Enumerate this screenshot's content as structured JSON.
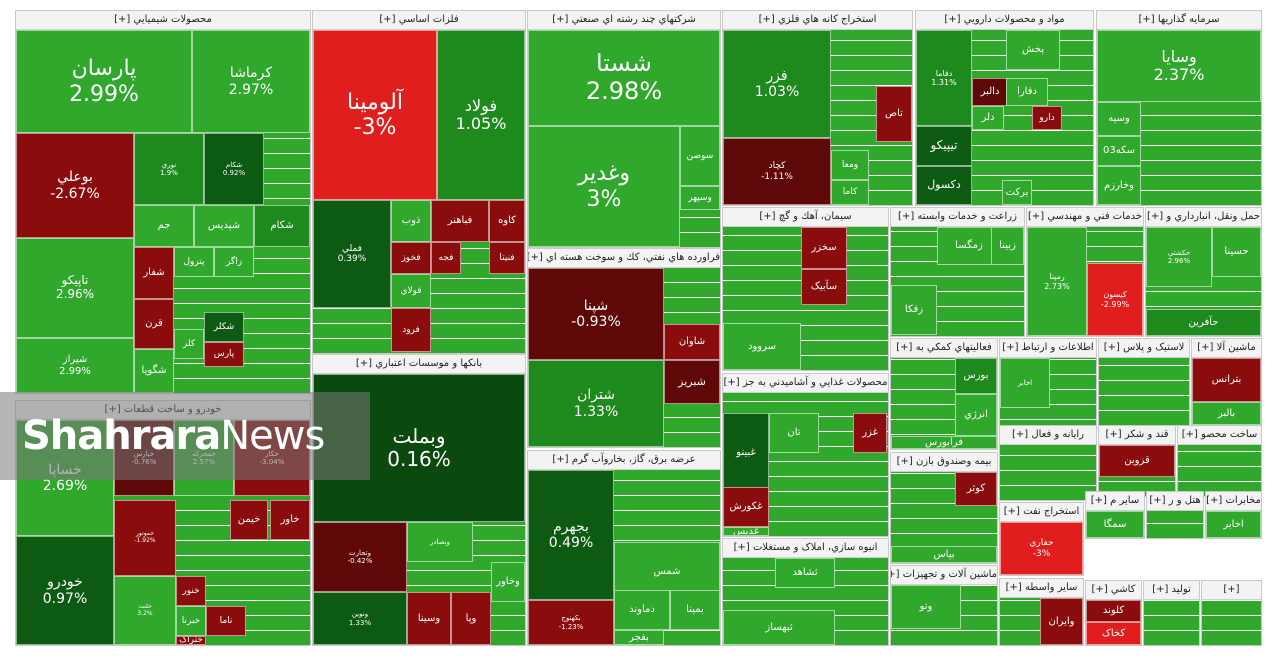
{
  "colors": {
    "bright_green": "#2fa82c",
    "green": "#1e8a1e",
    "dark_green": "#0d5a12",
    "darker_green": "#0a4a0e",
    "light_green": "#4dbd3a",
    "red": "#e01e1e",
    "dark_red": "#8a0c0c",
    "maroon": "#5e0808"
  },
  "watermark": {
    "part1": "Shahrara",
    "part2": "News"
  },
  "sectors": [
    {
      "label": "محصولات شيميايي [+]",
      "tiles": [
        {
          "name": "پارسان",
          "change": "2.99%",
          "color": "bright_green"
        },
        {
          "name": "کرماشا",
          "change": "2.97%",
          "color": "bright_green"
        },
        {
          "name": "بوعلي",
          "change": "-2.67%",
          "color": "dark_red"
        },
        {
          "name": "نوري",
          "change": "1.9%",
          "color": "green"
        },
        {
          "name": "شکام",
          "change": "0.92%",
          "color": "dark_green"
        },
        {
          "name": "تاپيکو",
          "change": "2.96%",
          "color": "bright_green"
        },
        {
          "name": "جم",
          "change": "",
          "color": "bright_green"
        },
        {
          "name": "شپديس",
          "change": "",
          "color": "bright_green"
        },
        {
          "name": "شكام",
          "change": "",
          "color": "green"
        },
        {
          "name": "شفار",
          "change": "",
          "color": "dark_red"
        },
        {
          "name": "پترول",
          "change": "",
          "color": "bright_green"
        },
        {
          "name": "زاگر",
          "change": "",
          "color": "bright_green"
        },
        {
          "name": "شيراز",
          "change": "2.99%",
          "color": "bright_green"
        },
        {
          "name": "قرن",
          "change": "",
          "color": "dark_red"
        },
        {
          "name": "شکلر",
          "change": "",
          "color": "dark_green"
        },
        {
          "name": "کلر",
          "change": "",
          "color": "bright_green"
        },
        {
          "name": "پارس",
          "change": "",
          "color": "dark_red"
        },
        {
          "name": "شگويا",
          "change": "",
          "color": "bright_green"
        }
      ]
    },
    {
      "label": "فلزات اساسي [+]",
      "tiles": [
        {
          "name": "آلومينا",
          "change": "-3%",
          "color": "red"
        },
        {
          "name": "فولاد",
          "change": "1.05%",
          "color": "green"
        },
        {
          "name": "فملي",
          "change": "0.39%",
          "color": "dark_green"
        },
        {
          "name": "ذوب",
          "change": "",
          "color": "bright_green"
        },
        {
          "name": "کاوه",
          "change": "",
          "color": "dark_red"
        },
        {
          "name": "فباهنر",
          "change": "",
          "color": "dark_red"
        },
        {
          "name": "فخوز",
          "change": "",
          "color": "dark_red"
        },
        {
          "name": "فجه",
          "change": "",
          "color": "dark_red"
        },
        {
          "name": "فنيتا",
          "change": "",
          "color": "dark_red"
        },
        {
          "name": "فولاي",
          "change": "",
          "color": "bright_green"
        },
        {
          "name": "فرود",
          "change": "",
          "color": "dark_red"
        }
      ]
    },
    {
      "label": "شرکتهاي چند رشته اي صنعتي [+]",
      "tiles": [
        {
          "name": "شستا",
          "change": "2.98%",
          "color": "bright_green"
        },
        {
          "name": "وغدير",
          "change": "3%",
          "color": "bright_green"
        },
        {
          "name": "سوصن",
          "change": "",
          "color": "bright_green"
        },
        {
          "name": "وسپهر",
          "change": "",
          "color": "bright_green"
        }
      ]
    },
    {
      "label": "استخراج کانه هاي فلزي [+]",
      "tiles": [
        {
          "name": "فزر",
          "change": "1.03%",
          "color": "green"
        },
        {
          "name": "کچاد",
          "change": "-1.11%",
          "color": "maroon"
        },
        {
          "name": "تاص",
          "change": "",
          "color": "dark_red"
        },
        {
          "name": "ومعا",
          "change": "",
          "color": "bright_green"
        },
        {
          "name": "کاما",
          "change": "",
          "color": "bright_green"
        }
      ]
    },
    {
      "label": "مواد و محصولات دارويي [+]",
      "tiles": [
        {
          "name": "دفاما",
          "change": "1.31%",
          "color": "green"
        },
        {
          "name": "پخش",
          "change": "",
          "color": "bright_green"
        },
        {
          "name": "دالبر",
          "change": "",
          "color": "maroon"
        },
        {
          "name": "دفارا",
          "change": "",
          "color": "bright_green"
        },
        {
          "name": "دلر",
          "change": "",
          "color": "bright_green"
        },
        {
          "name": "تيپيکو",
          "change": "",
          "color": "dark_green"
        },
        {
          "name": "دکسول",
          "change": "",
          "color": "dark_green"
        },
        {
          "name": "برکت",
          "change": "",
          "color": "bright_green"
        },
        {
          "name": "دارو",
          "change": "",
          "color": "dark_red"
        }
      ]
    },
    {
      "label": "سرمايه گذاريها [+]",
      "tiles": [
        {
          "name": "وسايا",
          "change": "2.37%",
          "color": "bright_green"
        },
        {
          "name": "وسپه",
          "change": "",
          "color": "bright_green"
        },
        {
          "name": "سکه03",
          "change": "",
          "color": "bright_green"
        },
        {
          "name": "وخارزم",
          "change": "",
          "color": "bright_green"
        }
      ]
    },
    {
      "label": "خودرو و ساخت قطعات [+]",
      "tiles": [
        {
          "name": "خساپا",
          "change": "2.69%",
          "color": "bright_green"
        },
        {
          "name": "خودرو",
          "change": "0.97%",
          "color": "dark_green"
        },
        {
          "name": "خپارس",
          "change": "-0.76%",
          "color": "maroon"
        },
        {
          "name": "خمحرکه",
          "change": "2.57%",
          "color": "bright_green"
        },
        {
          "name": "خکار",
          "change": "-3.04%",
          "color": "dark_red"
        },
        {
          "name": "خموتور",
          "change": "-1.92%",
          "color": "dark_red"
        },
        {
          "name": "خيمن",
          "change": "",
          "color": "dark_red"
        },
        {
          "name": "خاور",
          "change": "",
          "color": "dark_red"
        },
        {
          "name": "خلنت",
          "change": "3.2%",
          "color": "bright_green"
        },
        {
          "name": "خنور",
          "change": "",
          "color": "dark_red"
        },
        {
          "name": "خبرنا",
          "change": "",
          "color": "bright_green"
        },
        {
          "name": "ختراک",
          "change": "",
          "color": "dark_red"
        },
        {
          "name": "ناما",
          "change": "",
          "color": "dark_red"
        }
      ]
    },
    {
      "label": "بانكها و موسسات اعتباري [+]",
      "tiles": [
        {
          "name": "وبملت",
          "change": "0.16%",
          "color": "darker_green"
        },
        {
          "name": "وتجارت",
          "change": "-0.42%",
          "color": "maroon"
        },
        {
          "name": "وبصادر",
          "change": "",
          "color": "bright_green"
        },
        {
          "name": "ونوين",
          "change": "1.33%",
          "color": "dark_green"
        },
        {
          "name": "وسينا",
          "change": "",
          "color": "dark_red"
        },
        {
          "name": "وپا",
          "change": "",
          "color": "dark_red"
        },
        {
          "name": "وخاور",
          "change": "",
          "color": "bright_green"
        }
      ]
    },
    {
      "label": "فراورده هاي نفتي، كك و سوخت هسته اي [+]",
      "tiles": [
        {
          "name": "شپنا",
          "change": "-0.93%",
          "color": "maroon"
        },
        {
          "name": "شاوان",
          "change": "",
          "color": "dark_red"
        },
        {
          "name": "شبريز",
          "change": "",
          "color": "maroon"
        },
        {
          "name": "شتران",
          "change": "1.33%",
          "color": "green"
        }
      ]
    },
    {
      "label": "عرضه برق، گاز، بخاروآب گرم [+]",
      "tiles": [
        {
          "name": "بجهرم",
          "change": "0.49%",
          "color": "dark_green"
        },
        {
          "name": "شمس",
          "change": "",
          "color": "bright_green"
        },
        {
          "name": "دماوند",
          "change": "",
          "color": "bright_green"
        },
        {
          "name": "بمپنا",
          "change": "",
          "color": "bright_green"
        },
        {
          "name": "بفجر",
          "change": "",
          "color": "bright_green"
        },
        {
          "name": "بکهنوج",
          "change": "-1.23%",
          "color": "dark_red"
        }
      ]
    },
    {
      "label": "سيمان، آهك و گچ [+]",
      "tiles": [
        {
          "name": "سخزر",
          "change": "",
          "color": "dark_red"
        },
        {
          "name": "سآبيک",
          "change": "",
          "color": "dark_red"
        },
        {
          "name": "سروود",
          "change": "",
          "color": "bright_green"
        }
      ]
    },
    {
      "label": "محصولات غذايي و آشاميدني به جز [+]",
      "tiles": [
        {
          "name": "غبينو",
          "change": "",
          "color": "dark_green"
        },
        {
          "name": "تان",
          "change": "",
          "color": "bright_green"
        },
        {
          "name": "غزر",
          "change": "",
          "color": "dark_red"
        },
        {
          "name": "غکورش",
          "change": "",
          "color": "dark_red"
        },
        {
          "name": "غديس",
          "change": "",
          "color": "bright_green"
        }
      ]
    },
    {
      "label": "زراعت و خدمات وابسته [+]",
      "tiles": [
        {
          "name": "زمگسا",
          "change": "",
          "color": "bright_green"
        },
        {
          "name": "زبينا",
          "change": "",
          "color": "bright_green"
        },
        {
          "name": "زفکا",
          "change": "",
          "color": "bright_green"
        }
      ]
    },
    {
      "label": "خدمات فني و مهندسي [+]",
      "tiles": [
        {
          "name": "رمپنا",
          "change": "2.73%",
          "color": "bright_green"
        },
        {
          "name": "کيسون",
          "change": "-2.99%",
          "color": "red"
        }
      ]
    },
    {
      "label": "حمل ونقل، انبارداري و [+]",
      "tiles": [
        {
          "name": "حکشتي",
          "change": "2.96%",
          "color": "bright_green"
        },
        {
          "name": "حسينا",
          "change": "",
          "color": "bright_green"
        },
        {
          "name": "حآفرين",
          "change": "",
          "color": "green"
        }
      ]
    },
    {
      "label": "فعاليتهاي کمکي به [+]",
      "tiles": [
        {
          "name": "بورس",
          "change": "",
          "color": "green"
        },
        {
          "name": "انرژي",
          "change": "",
          "color": "bright_green"
        },
        {
          "name": "فرابورس",
          "change": "",
          "color": "bright_green"
        }
      ]
    },
    {
      "label": "اطلاعات و ارتباط [+]",
      "tiles": [
        {
          "name": "اخابر",
          "change": "",
          "color": "bright_green"
        }
      ]
    },
    {
      "label": "لاستيک و پلاس [+]",
      "tiles": []
    },
    {
      "label": "ماشين آلا [+]",
      "tiles": [
        {
          "name": "بترانس",
          "change": "",
          "color": "dark_red"
        },
        {
          "name": "بالبر",
          "change": "",
          "color": "bright_green"
        }
      ]
    },
    {
      "label": "بيمه وصندوق بازن [+]",
      "tiles": [
        {
          "name": "کوثر",
          "change": "",
          "color": "dark_red"
        },
        {
          "name": "بپاس",
          "change": "",
          "color": "bright_green"
        }
      ]
    },
    {
      "label": "رايانه و فعال [+]",
      "tiles": []
    },
    {
      "label": "قند و شکر [+]",
      "tiles": [
        {
          "name": "قزوين",
          "change": "",
          "color": "dark_red"
        }
      ]
    },
    {
      "label": "ساخت محصو [+]",
      "tiles": []
    },
    {
      "label": "انبوه سازي، املاک و مستغلات [+]",
      "tiles": [
        {
          "name": "ثشاهد",
          "change": "",
          "color": "bright_green"
        },
        {
          "name": "ثبهساز",
          "change": "",
          "color": "bright_green"
        }
      ]
    },
    {
      "label": "ماشين آلات و تجهيزات [+]",
      "tiles": [
        {
          "name": "وتو",
          "change": "",
          "color": "bright_green"
        }
      ]
    },
    {
      "label": "استخراج نفت [+]",
      "tiles": [
        {
          "name": "حفاري",
          "change": "-3%",
          "color": "red"
        }
      ]
    },
    {
      "label": "ساير واسطه [+]",
      "tiles": [
        {
          "name": "وايران",
          "change": "",
          "color": "dark_red"
        }
      ]
    },
    {
      "label": "ساير م [+]",
      "tiles": [
        {
          "name": "سمگا",
          "change": "",
          "color": "bright_green"
        }
      ]
    },
    {
      "label": "هتل و ر [+]",
      "tiles": []
    },
    {
      "label": "مخابرات [+]",
      "tiles": [
        {
          "name": "اخابر",
          "change": "",
          "color": "bright_green"
        }
      ]
    },
    {
      "label": "کاشي [+]",
      "tiles": [
        {
          "name": "کلوند",
          "change": "",
          "color": "dark_red"
        },
        {
          "name": "کخاک",
          "change": "",
          "color": "red"
        }
      ]
    },
    {
      "label": "توليد [+]",
      "tiles": []
    },
    {
      "label": "[+]",
      "tiles": []
    }
  ]
}
